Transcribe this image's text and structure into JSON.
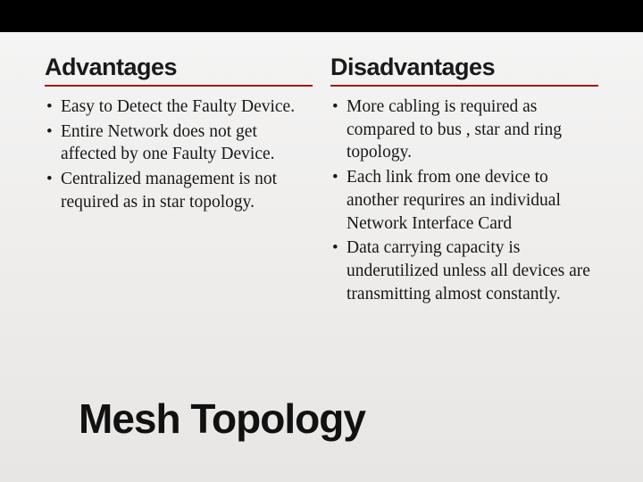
{
  "theme": {
    "top_bar_color": "#000000",
    "accent_underline_color": "#a01818",
    "background_gradient_top": "#f5f5f5",
    "background_gradient_bottom": "#e8e6e4",
    "heading_font": "Arial Narrow",
    "body_font": "Times New Roman",
    "heading_fontsize_pt": 20,
    "body_fontsize_pt": 15,
    "title_fontsize_pt": 34,
    "text_color": "#181818"
  },
  "left": {
    "header": "Advantages",
    "items": [
      "Easy to Detect the Faulty Device.",
      "Entire Network does not get affected by one Faulty Device.",
      "Centralized management is not required as in star topology."
    ]
  },
  "right": {
    "header": "Disadvantages",
    "items": [
      "More cabling is required as compared to bus , star and ring topology.",
      "Each link from one device to another requrires an individual Network Interface Card",
      "Data carrying capacity is underutilized unless all devices are transmitting almost constantly."
    ]
  },
  "title": "Mesh Topology"
}
